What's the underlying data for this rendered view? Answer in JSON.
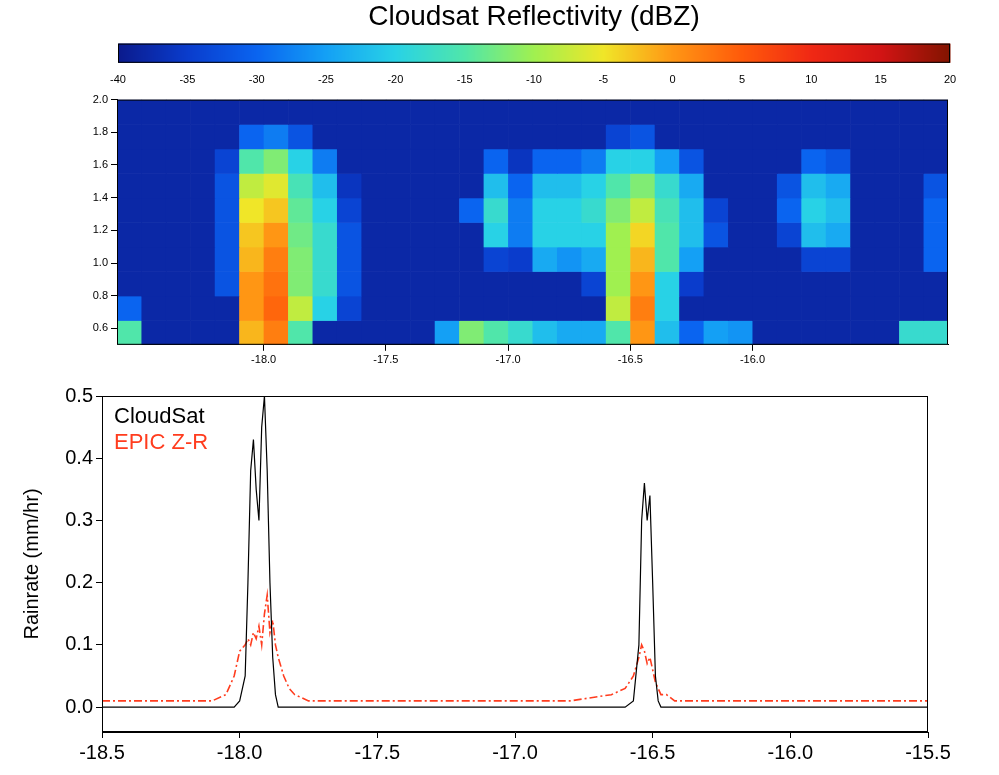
{
  "chart_data": [
    {
      "type": "heatmap",
      "x_edges": [
        -18.6,
        -18.5,
        -18.4,
        -18.3,
        -18.2,
        -18.1,
        -18.0,
        -17.9,
        -17.8,
        -17.7,
        -17.6,
        -17.5,
        -17.4,
        -17.3,
        -17.2,
        -17.1,
        -17.0,
        -16.9,
        -16.8,
        -16.7,
        -16.6,
        -16.5,
        -16.4,
        -16.3,
        -16.2,
        -16.1,
        -16.0,
        -15.9,
        -15.8,
        -15.7,
        -15.6,
        -15.5,
        -15.4,
        -15.3,
        -15.2
      ],
      "y_edges": [
        0.5,
        0.65,
        0.8,
        0.95,
        1.1,
        1.25,
        1.4,
        1.55,
        1.7,
        1.85,
        2.0
      ],
      "values": [
        [
          -15,
          -38,
          -38,
          -38,
          -38,
          -2,
          2,
          -15,
          -38,
          -38,
          -38,
          -38,
          -38,
          -25,
          -12,
          -15,
          -18,
          -22,
          -24,
          -24,
          -15,
          0,
          -22,
          -30,
          -25,
          -26,
          -38,
          -38,
          -38,
          -38,
          -38,
          -38,
          -18,
          -18
        ],
        [
          -30,
          -38,
          -38,
          -38,
          -38,
          0,
          4,
          -8,
          -20,
          -34,
          -38,
          -38,
          -38,
          -38,
          -38,
          -38,
          -38,
          -38,
          -38,
          -38,
          -8,
          2,
          -20,
          -38,
          -38,
          -38,
          -38,
          -38,
          -38,
          -38,
          -38,
          -38,
          -38,
          -38
        ],
        [
          -38,
          -38,
          -38,
          -38,
          -32,
          0,
          3,
          -12,
          -18,
          -32,
          -38,
          -38,
          -38,
          -38,
          -38,
          -38,
          -38,
          -38,
          -38,
          -34,
          -10,
          0,
          -20,
          -35,
          -38,
          -38,
          -38,
          -38,
          -38,
          -38,
          -38,
          -38,
          -38,
          -38
        ],
        [
          -38,
          -38,
          -38,
          -38,
          -32,
          -2,
          2,
          -12,
          -18,
          -32,
          -38,
          -38,
          -38,
          -38,
          -38,
          -34,
          -35,
          -24,
          -26,
          -24,
          -10,
          -2,
          -15,
          -25,
          -38,
          -38,
          -38,
          -38,
          -34,
          -34,
          -38,
          -38,
          -38,
          -30
        ],
        [
          -38,
          -38,
          -38,
          -38,
          -32,
          -3,
          0,
          -13,
          -18,
          -32,
          -38,
          -38,
          -38,
          -38,
          -38,
          -20,
          -28,
          -20,
          -20,
          -20,
          -10,
          -4,
          -15,
          -22,
          -32,
          -38,
          -38,
          -34,
          -22,
          -24,
          -38,
          -38,
          -38,
          -30
        ],
        [
          -38,
          -38,
          -38,
          -38,
          -32,
          -5,
          -3,
          -14,
          -20,
          -34,
          -38,
          -38,
          -38,
          -38,
          -30,
          -18,
          -28,
          -20,
          -20,
          -18,
          -12,
          -8,
          -16,
          -22,
          -34,
          -38,
          -38,
          -30,
          -20,
          -22,
          -38,
          -38,
          -38,
          -30
        ],
        [
          -38,
          -38,
          -38,
          -38,
          -32,
          -8,
          -6,
          -16,
          -22,
          -36,
          -38,
          -38,
          -38,
          -38,
          -38,
          -22,
          -30,
          -22,
          -22,
          -20,
          -15,
          -12,
          -18,
          -24,
          -38,
          -38,
          -38,
          -32,
          -22,
          -24,
          -38,
          -38,
          -38,
          -32
        ],
        [
          -38,
          -38,
          -38,
          -38,
          -34,
          -15,
          -12,
          -20,
          -28,
          -38,
          -38,
          -38,
          -38,
          -38,
          -38,
          -30,
          -36,
          -30,
          -30,
          -28,
          -20,
          -20,
          -25,
          -32,
          -38,
          -38,
          -38,
          -38,
          -30,
          -32,
          -38,
          -38,
          -38,
          -38
        ],
        [
          -38,
          -38,
          -38,
          -38,
          -38,
          -30,
          -28,
          -32,
          -38,
          -38,
          -38,
          -38,
          -38,
          -38,
          -38,
          -38,
          -38,
          -38,
          -38,
          -38,
          -34,
          -32,
          -38,
          -38,
          -38,
          -38,
          -38,
          -38,
          -38,
          -38,
          -38,
          -38,
          -38,
          -38
        ],
        [
          -38,
          -38,
          -38,
          -38,
          -38,
          -38,
          -38,
          -38,
          -38,
          -38,
          -38,
          -38,
          -38,
          -38,
          -38,
          -38,
          -38,
          -38,
          -38,
          -38,
          -38,
          -38,
          -38,
          -38,
          -38,
          -38,
          -38,
          -38,
          -38,
          -38,
          -38,
          -38,
          -38,
          -38
        ]
      ],
      "xlim": [
        -18.6,
        -15.2
      ],
      "ylim": [
        0.5,
        2.0
      ],
      "xticks": [
        {
          "value": -18,
          "label": "-18.0"
        },
        -17.5,
        {
          "value": -17,
          "label": "-17.0"
        },
        -16.5,
        {
          "value": -16,
          "label": "-16.0"
        }
      ],
      "yticks": [
        0.6,
        0.8,
        {
          "value": 1,
          "label": "1.0"
        },
        1.2,
        1.4,
        1.6,
        1.8,
        {
          "value": 2,
          "label": "2.0"
        }
      ],
      "grid": false,
      "colorbar": {
        "label": "Cloudsat Reflectivity (dBZ)",
        "range": [
          -40,
          20
        ],
        "ticks": [
          -40,
          -35,
          -30,
          -25,
          -20,
          -15,
          -10,
          -5,
          0,
          5,
          10,
          15,
          20
        ]
      }
    },
    {
      "type": "line",
      "y_label": "Rainrate (mm/hr)",
      "x": [
        -18.5,
        -18.3,
        -18.1,
        -18.05,
        -18.02,
        -18.0,
        -17.98,
        -17.97,
        -17.96,
        -17.95,
        -17.94,
        -17.93,
        -17.92,
        -17.91,
        -17.9,
        -17.89,
        -17.88,
        -17.87,
        -17.86,
        -17.84,
        -17.82,
        -17.8,
        -17.75,
        -17.6,
        -17.4,
        -17.2,
        -17.0,
        -16.8,
        -16.65,
        -16.6,
        -16.57,
        -16.55,
        -16.54,
        -16.53,
        -16.52,
        -16.51,
        -16.5,
        -16.49,
        -16.48,
        -16.47,
        -16.45,
        -16.42,
        -16.4,
        -16.2,
        -16.0,
        -15.8,
        -15.5
      ],
      "series": [
        {
          "name": "CloudSat",
          "color": "#000000",
          "line_style": "solid",
          "values": [
            0,
            0,
            0,
            0,
            0,
            0.01,
            0.05,
            0.2,
            0.38,
            0.43,
            0.35,
            0.3,
            0.45,
            0.5,
            0.38,
            0.2,
            0.08,
            0.02,
            0,
            0,
            0,
            0,
            0,
            0,
            0,
            0,
            0,
            0,
            0,
            0,
            0.01,
            0.1,
            0.3,
            0.36,
            0.3,
            0.34,
            0.2,
            0.05,
            0.01,
            0,
            0,
            0,
            0,
            0,
            0,
            0,
            0
          ]
        },
        {
          "name": "EPIC Z-R",
          "color": "#ff3c1e",
          "line_style": "dashdot",
          "values": [
            0.01,
            0.01,
            0.01,
            0.02,
            0.05,
            0.09,
            0.1,
            0.11,
            0.1,
            0.12,
            0.11,
            0.13,
            0.1,
            0.15,
            0.18,
            0.12,
            0.14,
            0.1,
            0.08,
            0.05,
            0.03,
            0.02,
            0.01,
            0.01,
            0.01,
            0.01,
            0.01,
            0.01,
            0.02,
            0.03,
            0.05,
            0.08,
            0.1,
            0.09,
            0.07,
            0.08,
            0.06,
            0.04,
            0.03,
            0.02,
            0.02,
            0.01,
            0.01,
            0.01,
            0.01,
            0.01,
            0.01
          ]
        }
      ],
      "xlim": [
        -18.5,
        -15.5
      ],
      "ylim": [
        -0.04,
        0.5
      ],
      "xticks": [
        -18.5,
        {
          "value": -18,
          "label": "-18.0"
        },
        -17.5,
        {
          "value": -17,
          "label": "-17.0"
        },
        -16.5,
        {
          "value": -16,
          "label": "-16.0"
        },
        -15.5
      ],
      "yticks": [
        {
          "value": 0,
          "label": "0.0"
        },
        0.1,
        0.2,
        0.3,
        0.4,
        0.5
      ],
      "grid": false,
      "legend": "upper left"
    }
  ]
}
